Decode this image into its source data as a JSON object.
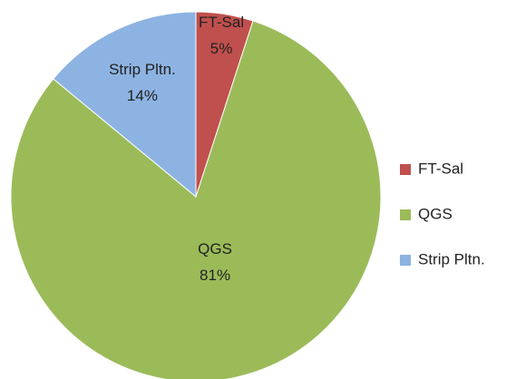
{
  "chart_data": {
    "type": "pie",
    "categories": [
      "FT-Sal",
      "QGS",
      "Strip Pltn."
    ],
    "values": [
      5,
      81,
      14
    ],
    "value_labels": [
      "5%",
      "81%",
      "14%"
    ],
    "colors": [
      "#c0504d",
      "#9bbb59",
      "#8db3e2"
    ],
    "legend": "right"
  }
}
